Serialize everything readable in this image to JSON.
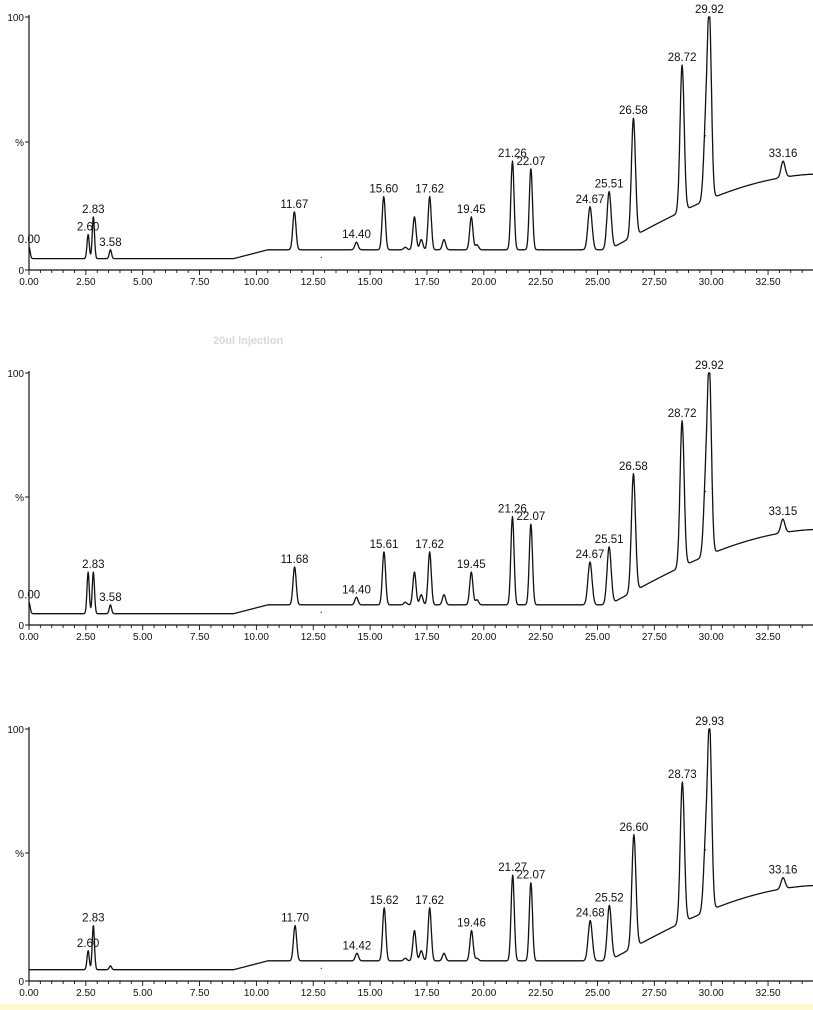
{
  "chart_data": [
    {
      "type": "line",
      "x_ticks": [
        "0.00",
        "2.50",
        "5.00",
        "7.50",
        "10.00",
        "12.50",
        "15.00",
        "17.50",
        "20.00",
        "22.50",
        "25.00",
        "27.50",
        "30.00",
        "32.50"
      ],
      "y_ticks": [
        "100",
        "%",
        "0"
      ],
      "xlim": [
        0,
        35
      ],
      "ylim": [
        0,
        100
      ],
      "grid": false,
      "peaks": [
        {
          "x": 0.0,
          "label": "0.00",
          "h": 9
        },
        {
          "x": 2.6,
          "label": "2.60",
          "h": 14
        },
        {
          "x": 2.83,
          "label": "2.83",
          "h": 21
        },
        {
          "x": 3.58,
          "label": "3.58",
          "h": 8
        },
        {
          "x": 11.67,
          "label": "11.67",
          "h": 23
        },
        {
          "x": 12.85,
          "label": "",
          "h": 5
        },
        {
          "x": 14.4,
          "label": "14.40",
          "h": 11
        },
        {
          "x": 15.6,
          "label": "15.60",
          "h": 29
        },
        {
          "x": 16.55,
          "label": "",
          "h": 9
        },
        {
          "x": 16.95,
          "label": "",
          "h": 21
        },
        {
          "x": 17.25,
          "label": "",
          "h": 12
        },
        {
          "x": 17.62,
          "label": "17.62",
          "h": 29
        },
        {
          "x": 18.25,
          "label": "",
          "h": 12
        },
        {
          "x": 19.45,
          "label": "19.45",
          "h": 21
        },
        {
          "x": 19.7,
          "label": "",
          "h": 10
        },
        {
          "x": 21.26,
          "label": "21.26",
          "h": 43
        },
        {
          "x": 22.07,
          "label": "22.07",
          "h": 40
        },
        {
          "x": 24.67,
          "label": "24.67",
          "h": 25
        },
        {
          "x": 25.51,
          "label": "25.51",
          "h": 31
        },
        {
          "x": 26.58,
          "label": "26.58",
          "h": 60
        },
        {
          "x": 28.72,
          "label": "28.72",
          "h": 81
        },
        {
          "x": 29.75,
          "label": "",
          "h": 53
        },
        {
          "x": 29.92,
          "label": "29.92",
          "h": 100
        },
        {
          "x": 33.16,
          "label": "33.16",
          "h": 43
        }
      ]
    },
    {
      "type": "line",
      "x_ticks": [
        "0.00",
        "2.50",
        "5.00",
        "7.50",
        "10.00",
        "12.50",
        "15.00",
        "17.50",
        "20.00",
        "22.50",
        "25.00",
        "27.50",
        "30.00",
        "32.50"
      ],
      "y_ticks": [
        "100",
        "%",
        "0"
      ],
      "xlim": [
        0,
        35
      ],
      "ylim": [
        0,
        100
      ],
      "grid": false,
      "peaks": [
        {
          "x": 0.0,
          "label": "0.00",
          "h": 9
        },
        {
          "x": 2.6,
          "label": "",
          "h": 21
        },
        {
          "x": 2.83,
          "label": "2.83",
          "h": 21
        },
        {
          "x": 3.58,
          "label": "3.58",
          "h": 8
        },
        {
          "x": 11.68,
          "label": "11.68",
          "h": 23
        },
        {
          "x": 12.85,
          "label": "",
          "h": 5
        },
        {
          "x": 14.4,
          "label": "14.40",
          "h": 11
        },
        {
          "x": 15.61,
          "label": "15.61",
          "h": 29
        },
        {
          "x": 16.55,
          "label": "",
          "h": 9
        },
        {
          "x": 16.95,
          "label": "",
          "h": 21
        },
        {
          "x": 17.25,
          "label": "",
          "h": 12
        },
        {
          "x": 17.62,
          "label": "17.62",
          "h": 29
        },
        {
          "x": 18.25,
          "label": "",
          "h": 12
        },
        {
          "x": 19.45,
          "label": "19.45",
          "h": 21
        },
        {
          "x": 19.7,
          "label": "",
          "h": 10
        },
        {
          "x": 21.26,
          "label": "21.26",
          "h": 43
        },
        {
          "x": 22.07,
          "label": "22.07",
          "h": 40
        },
        {
          "x": 24.67,
          "label": "24.67",
          "h": 25
        },
        {
          "x": 25.51,
          "label": "25.51",
          "h": 31
        },
        {
          "x": 26.58,
          "label": "26.58",
          "h": 60
        },
        {
          "x": 28.72,
          "label": "28.72",
          "h": 81
        },
        {
          "x": 29.75,
          "label": "",
          "h": 53
        },
        {
          "x": 29.92,
          "label": "29.92",
          "h": 100
        },
        {
          "x": 33.15,
          "label": "33.15",
          "h": 42
        }
      ]
    },
    {
      "type": "line",
      "x_ticks": [
        "0.00",
        "2.50",
        "5.00",
        "7.50",
        "10.00",
        "12.50",
        "15.00",
        "17.50",
        "20.00",
        "22.50",
        "25.00",
        "27.50",
        "30.00",
        "32.50"
      ],
      "y_ticks": [
        "100",
        "%",
        "0"
      ],
      "xlim": [
        0,
        35
      ],
      "ylim": [
        0,
        100
      ],
      "grid": false,
      "peaks": [
        {
          "x": 2.6,
          "label": "2.60",
          "h": 12
        },
        {
          "x": 2.83,
          "label": "2.83",
          "h": 22
        },
        {
          "x": 3.58,
          "label": "",
          "h": 6
        },
        {
          "x": 11.7,
          "label": "11.70",
          "h": 22
        },
        {
          "x": 12.85,
          "label": "",
          "h": 5
        },
        {
          "x": 14.42,
          "label": "14.42",
          "h": 11
        },
        {
          "x": 15.62,
          "label": "15.62",
          "h": 29
        },
        {
          "x": 16.55,
          "label": "",
          "h": 9
        },
        {
          "x": 16.95,
          "label": "",
          "h": 20
        },
        {
          "x": 17.25,
          "label": "",
          "h": 12
        },
        {
          "x": 17.62,
          "label": "17.62",
          "h": 29
        },
        {
          "x": 18.25,
          "label": "",
          "h": 11
        },
        {
          "x": 19.46,
          "label": "19.46",
          "h": 20
        },
        {
          "x": 19.7,
          "label": "",
          "h": 9
        },
        {
          "x": 21.27,
          "label": "21.27",
          "h": 42
        },
        {
          "x": 22.07,
          "label": "22.07",
          "h": 39
        },
        {
          "x": 24.68,
          "label": "24.68",
          "h": 24
        },
        {
          "x": 25.52,
          "label": "25.52",
          "h": 30
        },
        {
          "x": 26.6,
          "label": "26.60",
          "h": 58
        },
        {
          "x": 28.73,
          "label": "28.73",
          "h": 79
        },
        {
          "x": 29.75,
          "label": "",
          "h": 52
        },
        {
          "x": 29.93,
          "label": "29.93",
          "h": 100
        },
        {
          "x": 33.16,
          "label": "33.16",
          "h": 41
        }
      ]
    }
  ],
  "faint_text": {
    "injection": "20ul Injection"
  }
}
